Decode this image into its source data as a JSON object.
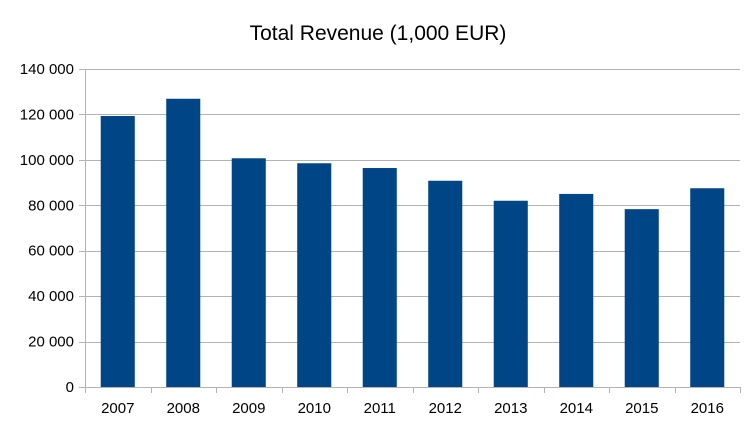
{
  "chart_data": {
    "type": "bar",
    "title": "Total Revenue (1,000 EUR)",
    "xlabel": "",
    "ylabel": "",
    "categories": [
      "2007",
      "2008",
      "2009",
      "2010",
      "2011",
      "2012",
      "2013",
      "2014",
      "2015",
      "2016"
    ],
    "values": [
      119300,
      126900,
      100700,
      98500,
      96400,
      90800,
      82000,
      85000,
      78300,
      87500
    ],
    "ylim": [
      0,
      140000
    ],
    "y_ticks": [
      0,
      20000,
      40000,
      60000,
      80000,
      100000,
      120000,
      140000
    ],
    "y_tick_labels": [
      "0",
      "20 000",
      "40 000",
      "60 000",
      "80 000",
      "100 000",
      "120 000",
      "140 000"
    ],
    "grid": true,
    "legend": "none",
    "bar_color": "#004586",
    "gridline_color": "#b3b3b3"
  }
}
